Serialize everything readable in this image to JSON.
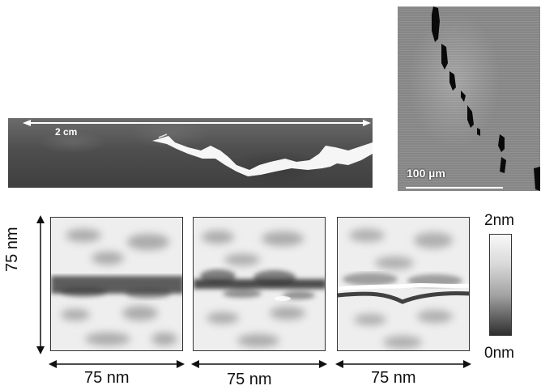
{
  "optical_image": {
    "scale_label": "2 cm"
  },
  "sem_image": {
    "scale_label": "100 µm"
  },
  "afm_panels": {
    "y_axis_label": "75 nm",
    "x_axis_labels": [
      "75 nm",
      "75 nm",
      "75 nm"
    ]
  },
  "colorbar": {
    "max_label": "2nm",
    "min_label": "0nm"
  },
  "colors": {
    "background": "#ffffff",
    "crack_white": "#ffffff",
    "crack_dark": "#0a0a0a"
  }
}
